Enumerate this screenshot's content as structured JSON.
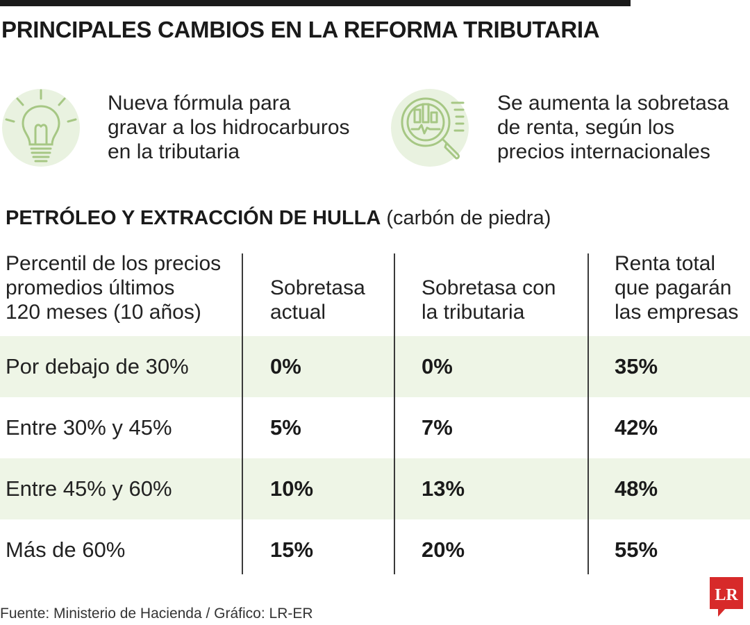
{
  "title": "PRINCIPALES CAMBIOS EN LA REFORMA TRIBUTARIA",
  "features": [
    {
      "icon": "lightbulb-icon",
      "lines": [
        "Nueva fórmula para",
        "gravar a los hidrocarburos",
        "en la tributaria"
      ]
    },
    {
      "icon": "chart-magnifier-icon",
      "lines": [
        "Se aumenta la sobretasa",
        "de renta, según los",
        "precios internacionales"
      ]
    }
  ],
  "section": {
    "title": "PETRÓLEO Y EXTRACCIÓN DE HULLA",
    "subtitle": "(carbón de piedra)"
  },
  "chart_data": {
    "type": "table",
    "columns": [
      [
        "Percentil de los precios",
        "promedios últimos",
        "120 meses (10 años)"
      ],
      [
        "Sobretasa",
        "actual"
      ],
      [
        "Sobretasa con",
        "la tributaria"
      ],
      [
        "Renta total",
        "que pagarán",
        "las empresas"
      ]
    ],
    "rows": [
      {
        "label": "Por debajo de 30%",
        "values": [
          "0%",
          "0%",
          "35%"
        ]
      },
      {
        "label": "Entre 30% y 45%",
        "values": [
          "5%",
          "7%",
          "42%"
        ]
      },
      {
        "label": "Entre 45% y 60%",
        "values": [
          "10%",
          "13%",
          "48%"
        ]
      },
      {
        "label": "Más de 60%",
        "values": [
          "15%",
          "20%",
          "55%"
        ]
      }
    ]
  },
  "source": "Fuente: Ministerio de Hacienda / Gráfico: LR-ER",
  "logo_text": "LR",
  "colors": {
    "accent_green": "#a6c784",
    "shade_green": "#eef5e6",
    "logo_red": "#d72a2a"
  }
}
